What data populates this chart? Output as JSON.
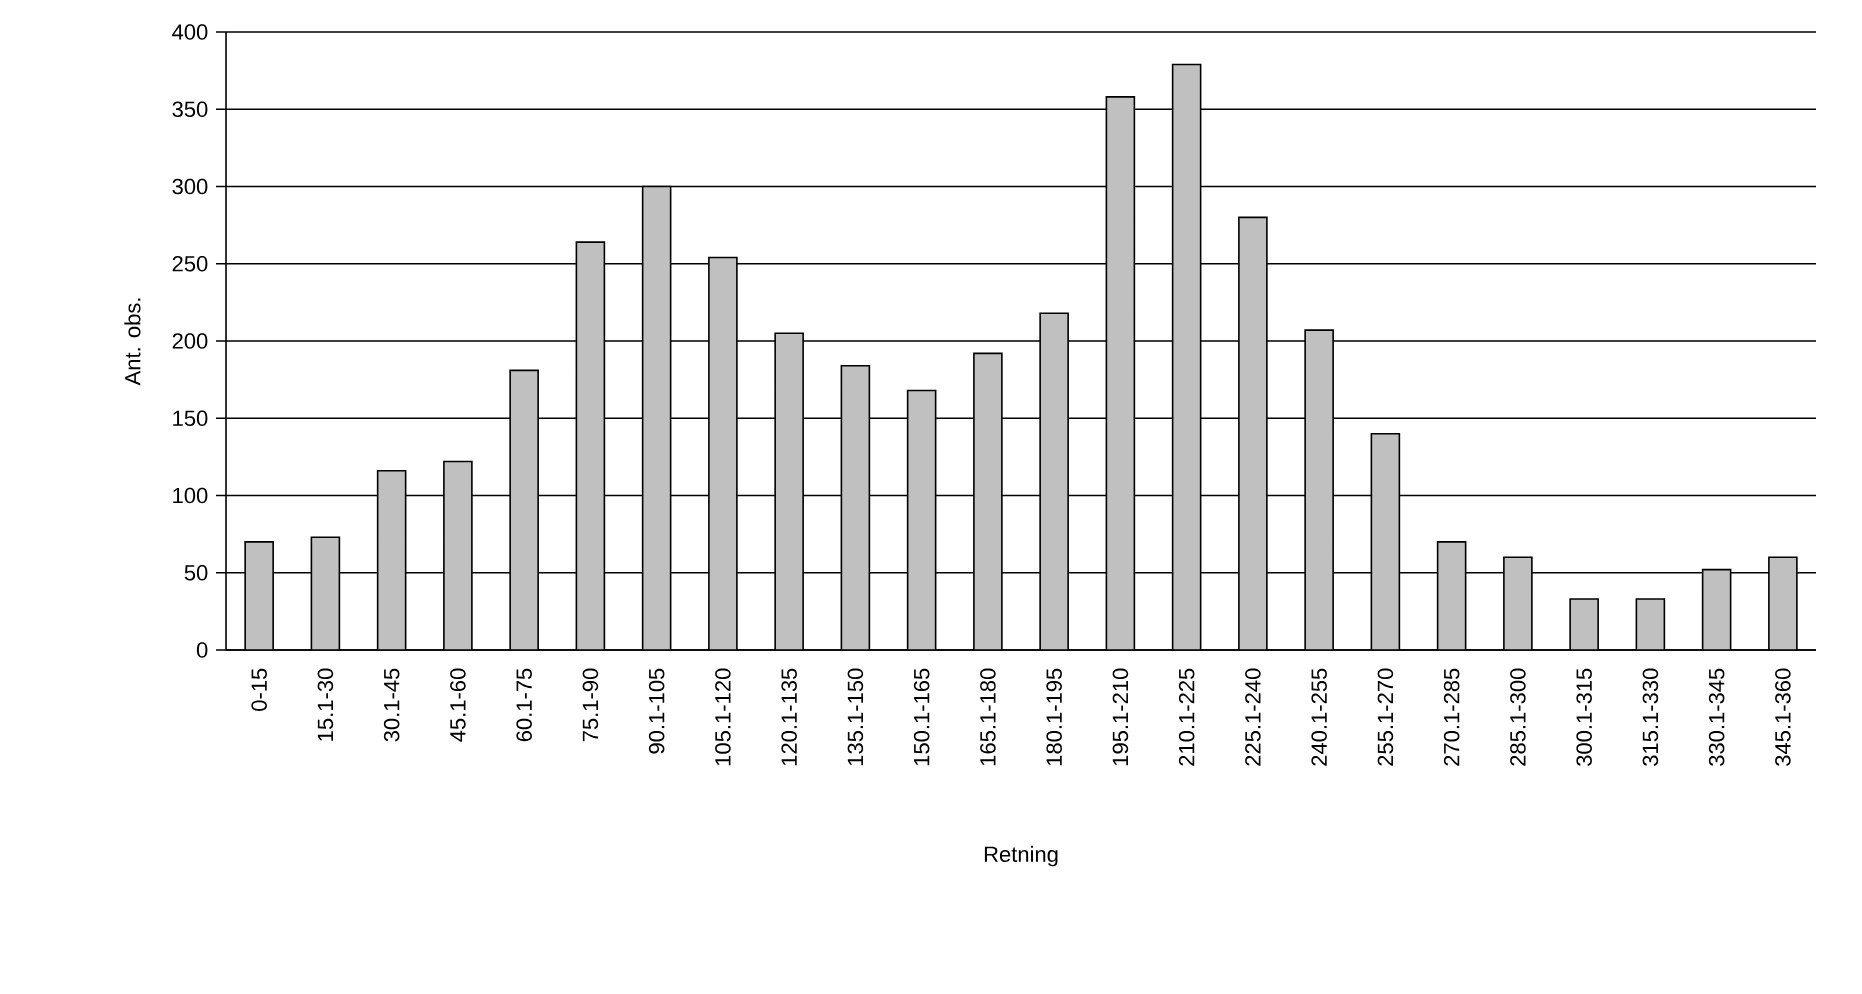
{
  "chart_data": {
    "type": "bar",
    "xlabel": "Retning",
    "ylabel": "Ant. obs.",
    "categories": [
      "0-15",
      "15.1-30",
      "30.1-45",
      "45.1-60",
      "60.1-75",
      "75.1-90",
      "90.1-105",
      "105.1-120",
      "120.1-135",
      "135.1-150",
      "150.1-165",
      "165.1-180",
      "180.1-195",
      "195.1-210",
      "210.1-225",
      "225.1-240",
      "240.1-255",
      "255.1-270",
      "270.1-285",
      "285.1-300",
      "300.1-315",
      "315.1-330",
      "330.1-345",
      "345.1-360"
    ],
    "values": [
      70,
      73,
      116,
      122,
      181,
      264,
      300,
      254,
      205,
      184,
      168,
      192,
      218,
      358,
      379,
      280,
      207,
      140,
      70,
      60,
      33,
      33,
      52,
      60
    ],
    "color": "#c0c0c0",
    "ylim": [
      0,
      400
    ],
    "yticks": [
      0,
      50,
      100,
      150,
      200,
      250,
      300,
      350,
      400
    ],
    "grid": "y"
  }
}
